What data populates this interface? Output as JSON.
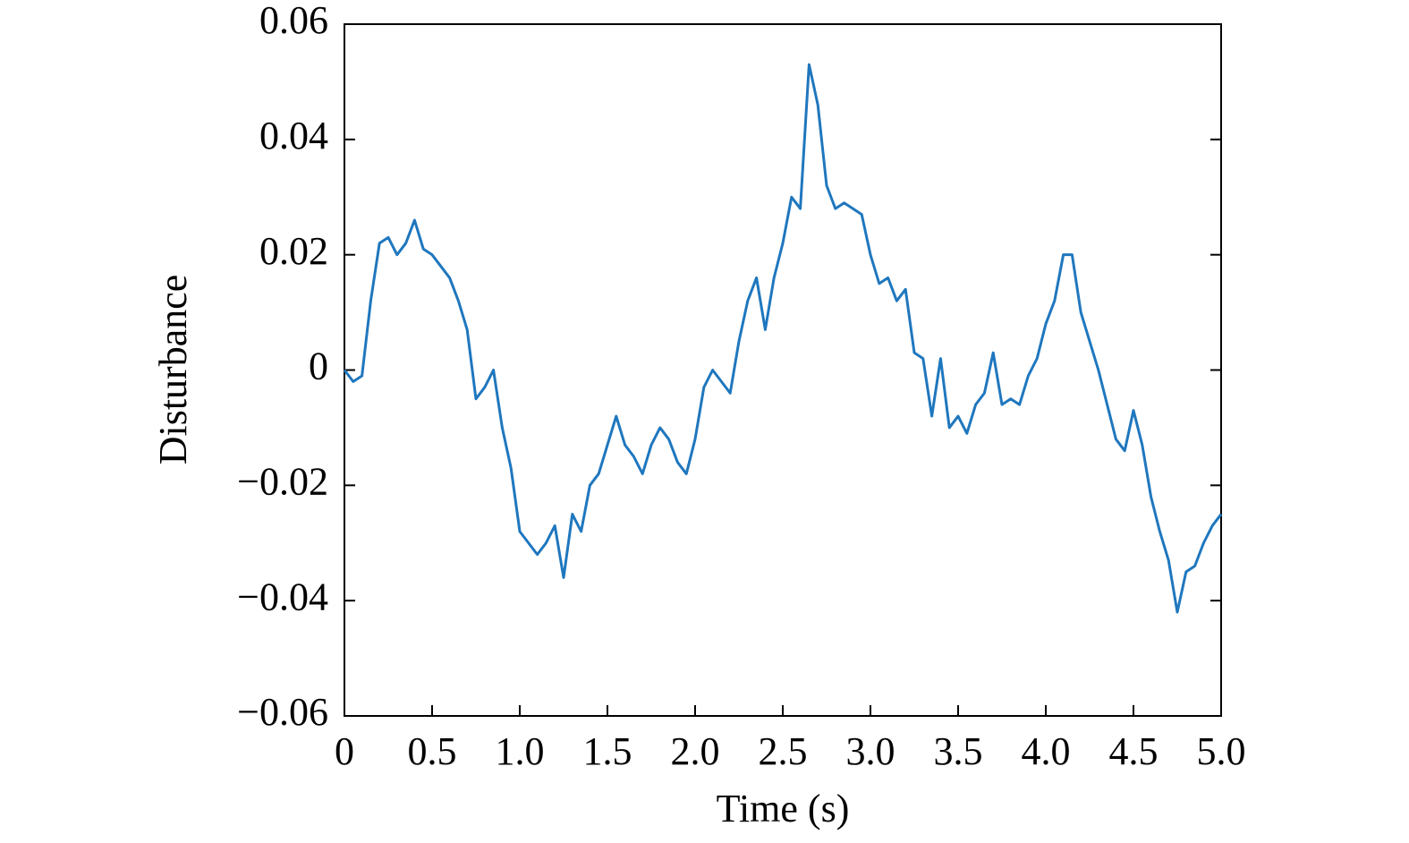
{
  "chart_data": {
    "type": "line",
    "x_label": "Time (s)",
    "y_label": "Disturbance",
    "x": [
      0,
      0.05,
      0.1,
      0.15,
      0.2,
      0.25,
      0.3,
      0.35,
      0.4,
      0.45,
      0.5,
      0.55,
      0.6,
      0.65,
      0.7,
      0.75,
      0.8,
      0.85,
      0.9,
      0.95,
      1.0,
      1.05,
      1.1,
      1.15,
      1.2,
      1.25,
      1.3,
      1.35,
      1.4,
      1.45,
      1.5,
      1.55,
      1.6,
      1.65,
      1.7,
      1.75,
      1.8,
      1.85,
      1.9,
      1.95,
      2.0,
      2.05,
      2.1,
      2.15,
      2.2,
      2.25,
      2.3,
      2.35,
      2.4,
      2.45,
      2.5,
      2.55,
      2.6,
      2.65,
      2.7,
      2.75,
      2.8,
      2.85,
      2.9,
      2.95,
      3.0,
      3.05,
      3.1,
      3.15,
      3.2,
      3.25,
      3.3,
      3.35,
      3.4,
      3.45,
      3.5,
      3.55,
      3.6,
      3.65,
      3.7,
      3.75,
      3.8,
      3.85,
      3.9,
      3.95,
      4.0,
      4.05,
      4.1,
      4.15,
      4.2,
      4.25,
      4.3,
      4.35,
      4.4,
      4.45,
      4.5,
      4.55,
      4.6,
      4.65,
      4.7,
      4.75,
      4.8,
      4.85,
      4.9,
      4.95,
      5.0
    ],
    "series": [
      {
        "color": "#1f77be",
        "values": [
          0.0,
          -0.002,
          -0.001,
          0.012,
          0.022,
          0.023,
          0.02,
          0.022,
          0.026,
          0.021,
          0.02,
          0.018,
          0.016,
          0.012,
          0.007,
          -0.005,
          -0.003,
          0.0,
          -0.01,
          -0.017,
          -0.028,
          -0.03,
          -0.032,
          -0.03,
          -0.027,
          -0.036,
          -0.025,
          -0.028,
          -0.02,
          -0.018,
          -0.013,
          -0.008,
          -0.013,
          -0.015,
          -0.018,
          -0.013,
          -0.01,
          -0.012,
          -0.016,
          -0.018,
          -0.012,
          -0.003,
          0.0,
          -0.002,
          -0.004,
          0.005,
          0.012,
          0.016,
          0.007,
          0.016,
          0.022,
          0.03,
          0.028,
          0.053,
          0.046,
          0.032,
          0.028,
          0.029,
          0.028,
          0.027,
          0.02,
          0.015,
          0.016,
          0.012,
          0.014,
          0.003,
          0.002,
          -0.008,
          0.002,
          -0.01,
          -0.008,
          -0.011,
          -0.006,
          -0.004,
          0.003,
          -0.006,
          -0.005,
          -0.006,
          -0.001,
          0.002,
          0.008,
          0.012,
          0.02,
          0.02,
          0.01,
          0.005,
          0.0,
          -0.006,
          -0.012,
          -0.014,
          -0.007,
          -0.013,
          -0.022,
          -0.028,
          -0.033,
          -0.042,
          -0.035,
          -0.034,
          -0.03,
          -0.027,
          -0.025
        ]
      }
    ],
    "xlim": [
      0,
      5
    ],
    "ylim": [
      -0.06,
      0.06
    ],
    "xticks": [
      0,
      0.5,
      {
        "value": 1,
        "label": "1.0"
      },
      1.5,
      {
        "value": 2,
        "label": "2.0"
      },
      2.5,
      {
        "value": 3,
        "label": "3.0"
      },
      3.5,
      {
        "value": 4,
        "label": "4.0"
      },
      4.5,
      {
        "value": 5,
        "label": "5.0"
      }
    ],
    "yticks": [
      {
        "value": -0.06,
        "label": "−0.06"
      },
      {
        "value": -0.04,
        "label": "−0.04"
      },
      {
        "value": -0.02,
        "label": "−0.02"
      },
      0,
      0.02,
      0.04,
      0.06
    ],
    "grid": false
  }
}
